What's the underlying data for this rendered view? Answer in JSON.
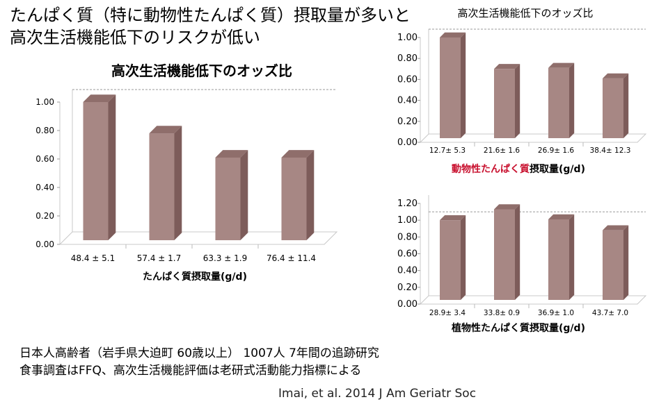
{
  "headline": {
    "line1": "たんぱく質（特に動物性たんぱく質）摂取量が多いと",
    "line2": "高次生活機能低下のリスクが低い"
  },
  "charts": {
    "main": {
      "xlabel": "たんぱく質摂取量(g/d)"
    },
    "top_right": {
      "xlabel_red": "動物性たんぱく質",
      "xlabel_rest": "摂取量(g/d)"
    },
    "bottom_right": {
      "xlabel": "植物性たんぱく質摂取量(g/d)"
    }
  },
  "footnote": {
    "line1": "日本人高齢者（岩手県大迫町 60歳以上） 1007人 7年間の追跡研究",
    "line2": "食事調査はFFQ、高次生活機能評価は老研式活動能力指標による"
  },
  "citation": "Imai, et al. 2014 J Am Geriatr Soc",
  "colors": {
    "bar_front": "#a78784",
    "bar_side": "#7d5c5a",
    "bar_top": "#8f6e6b"
  },
  "chart_data": [
    {
      "type": "bar",
      "title": "高次生活機能低下のオッズ比",
      "categories": [
        "48.4 ± 5.1",
        "57.4 ± 1.7",
        "63.3 ± 1.9",
        "76.4 ± 11.4"
      ],
      "values": [
        1.0,
        0.78,
        0.61,
        0.61
      ],
      "ylim": [
        0,
        1.0
      ],
      "yticks": [
        "0.00",
        "0.20",
        "0.40",
        "0.60",
        "0.80",
        "1.00"
      ],
      "xlabel": "たんぱく質摂取量(g/d)",
      "reference_line": 1.0
    },
    {
      "type": "bar",
      "title": "高次生活機能低下のオッズ比",
      "categories": [
        "12.7± 5.3",
        "21.6± 1.6",
        "26.9± 1.6",
        "38.4± 12.3"
      ],
      "values": [
        1.0,
        0.7,
        0.71,
        0.61
      ],
      "ylim": [
        0,
        1.0
      ],
      "yticks": [
        "0.00",
        "0.20",
        "0.40",
        "0.60",
        "0.80",
        "1.00"
      ],
      "xlabel": "動物性たんぱく質摂取量(g/d)",
      "reference_line": 1.0
    },
    {
      "type": "bar",
      "title": "",
      "categories": [
        "28.9± 3.4",
        "33.8± 0.9",
        "36.9± 1.0",
        "43.7± 7.0"
      ],
      "values": [
        1.0,
        1.13,
        1.01,
        0.88
      ],
      "ylim": [
        0,
        1.2
      ],
      "yticks": [
        "0.00",
        "0.20",
        "0.40",
        "0.60",
        "0.80",
        "1.00",
        "1.20"
      ],
      "xlabel": "植物性たんぱく質摂取量(g/d)",
      "reference_line": 1.0
    }
  ]
}
